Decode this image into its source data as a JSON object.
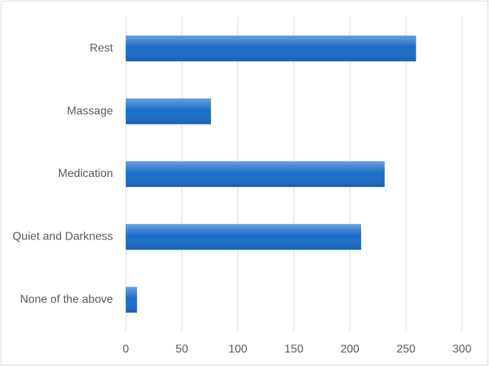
{
  "chart_data": {
    "type": "bar",
    "orientation": "horizontal",
    "categories": [
      "Rest",
      "Massage",
      "Medication",
      "Quiet and Darkness",
      "None of the above"
    ],
    "values": [
      259,
      76,
      231,
      210,
      10
    ],
    "color": "#1a6dc8",
    "xlim": [
      0,
      300
    ],
    "xticks": [
      0,
      50,
      100,
      150,
      200,
      250,
      300
    ],
    "grid": true
  }
}
